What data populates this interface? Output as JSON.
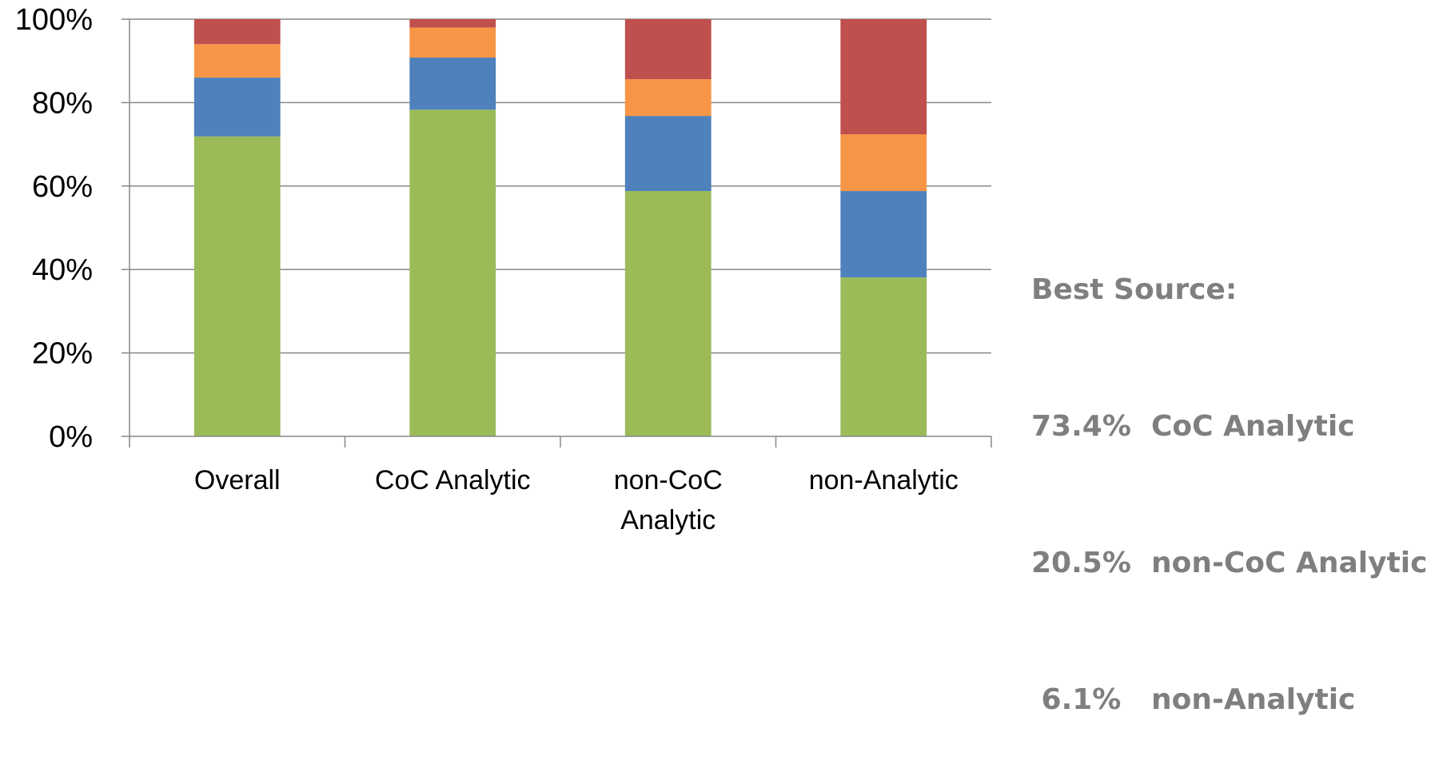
{
  "chart_data": {
    "type": "bar",
    "stacked": true,
    "categories": [
      "Overall",
      "CoC Analytic",
      "non-CoC Analytic",
      "non-Analytic"
    ],
    "category_lines": [
      [
        "Overall"
      ],
      [
        "CoC Analytic"
      ],
      [
        "non-CoC",
        "Analytic"
      ],
      [
        "non-Analytic"
      ]
    ],
    "series": [
      {
        "color": "#9bbb59",
        "values": [
          71.9,
          78.3,
          58.8,
          38.1
        ]
      },
      {
        "color": "#4f81bd",
        "values": [
          14.1,
          12.5,
          18.0,
          20.7
        ]
      },
      {
        "color": "#f79646",
        "values": [
          8.0,
          7.2,
          8.8,
          13.6
        ]
      },
      {
        "color": "#c0504d",
        "values": [
          6.0,
          2.0,
          14.4,
          27.6
        ]
      }
    ],
    "yticks": [
      "0%",
      "20%",
      "40%",
      "60%",
      "80%",
      "100%"
    ],
    "ylim": [
      0,
      100
    ],
    "grid": true,
    "legend": "none"
  },
  "annotation": {
    "lines": [
      "Best Source:",
      "73.4%  CoC Analytic",
      "20.5%  non-CoC Analytic",
      " 6.1%   non-Analytic"
    ],
    "color": "#7f7f7f"
  }
}
